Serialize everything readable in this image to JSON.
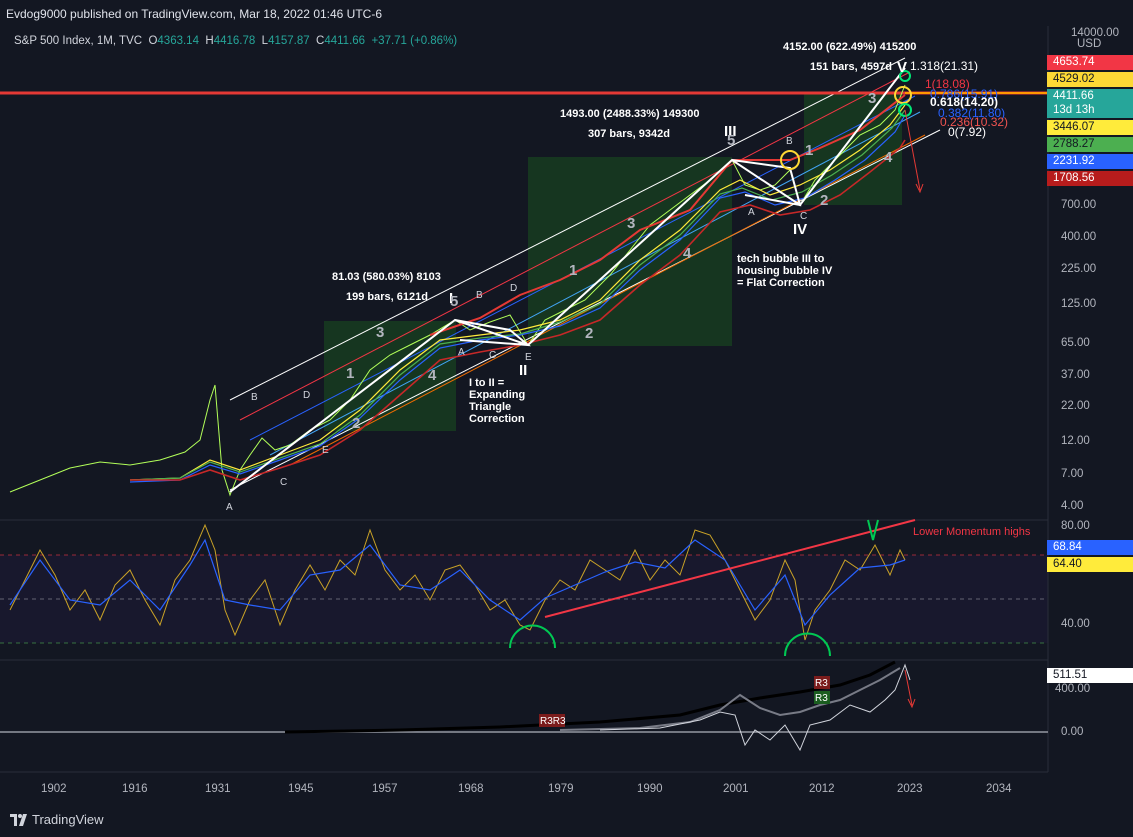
{
  "header": {
    "published": "Evdog9000 published on TradingView.com, Mar 18, 2022 01:46 UTC-6"
  },
  "legend": {
    "symbol": "S&P 500 Index, 1M, TVC",
    "o_label": "O",
    "o": "4363.14",
    "h_label": "H",
    "h": "4416.78",
    "l_label": "L",
    "l": "4157.87",
    "c_label": "C",
    "c": "4411.66",
    "change": "+37.71 (+0.86%)"
  },
  "price_axis": {
    "top": "14000.00",
    "currency": "USD",
    "ticks": [
      "700.00",
      "400.00",
      "225.00",
      "125.00",
      "65.00",
      "37.00",
      "22.00",
      "12.00",
      "7.00",
      "4.00"
    ]
  },
  "price_labels": [
    {
      "text": "4653.74",
      "bg": "#f23645",
      "fg": "#ffffff"
    },
    {
      "text": "4529.02",
      "bg": "#fdd835",
      "fg": "#131722"
    },
    {
      "text": "4411.66",
      "bg": "#26a69a",
      "fg": "#ffffff"
    },
    {
      "text": "13d 13h",
      "bg": "#26a69a",
      "fg": "#ffffff"
    },
    {
      "text": "3446.07",
      "bg": "#ffeb3b",
      "fg": "#131722"
    },
    {
      "text": "2788.27",
      "bg": "#4caf50",
      "fg": "#131722"
    },
    {
      "text": "2231.92",
      "bg": "#2962ff",
      "fg": "#ffffff"
    },
    {
      "text": "1708.56",
      "bg": "#b71c1c",
      "fg": "#ffffff"
    }
  ],
  "rsi_axis": {
    "ticks": [
      "80.00",
      "40.00"
    ],
    "label1": "68.84",
    "label2": "64.40"
  },
  "osc_axis": {
    "ticks": [
      "400.00",
      "0.00"
    ],
    "label": "511.51"
  },
  "time_axis": [
    "1902",
    "1916",
    "1931",
    "1945",
    "1957",
    "1968",
    "1979",
    "1990",
    "2001",
    "2012",
    "2023",
    "2034"
  ],
  "annotations": {
    "wave3_stats_1": "4152.00 (622.49%) 415200",
    "wave3_stats_2": "151 bars, 4597d",
    "bigwave_stats_1": "1493.00 (2488.33%) 149300",
    "bigwave_stats_2": "307 bars, 9342d",
    "wave1_stats_1": "81.03 (580.03%) 8103",
    "wave1_stats_2": "199 bars, 6121d",
    "note_tech": "tech bubble III to",
    "note_housing": "housing bubble IV",
    "note_flat": "= Flat Correction",
    "note_i_to_ii": "I to II =",
    "note_expanding": "Expanding",
    "note_triangle": "Triangle",
    "note_correction": "Correction",
    "lower_momentum": "Lower Momentum highs",
    "fib_1318": "1.318(21.31)",
    "fib_1": "1(18.08)",
    "fib_0786": "0.786(15.91)",
    "fib_0618": "0.618(14.20)",
    "fib_0382": "0.382(11.80)",
    "fib_0236": "0.236(10.32)",
    "fib_0": "0(7.92)",
    "wave_I": "I",
    "wave_II": "II",
    "wave_III": "III",
    "wave_IV": "IV",
    "wave_V": "V",
    "r3_a": "R3",
    "r3_b": "R3",
    "r3_c": "R3R3"
  },
  "footer": {
    "brand": "TradingView"
  }
}
